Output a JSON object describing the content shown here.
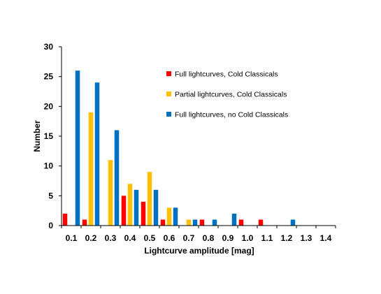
{
  "chart_data": {
    "type": "bar",
    "categories": [
      "0.1",
      "0.2",
      "0.3",
      "0.4",
      "0.5",
      "0.6",
      "0.7",
      "0.8",
      "0.9",
      "1.0",
      "1.1",
      "1.2",
      "1.3",
      "1.4"
    ],
    "series": [
      {
        "name": "Full lightcurves, Cold Classicals",
        "color": "#ff0000",
        "values": [
          2,
          1,
          0,
          5,
          4,
          1,
          0,
          1,
          0,
          1,
          1,
          0,
          0,
          0
        ]
      },
      {
        "name": "Partial lightcurves, Cold Classicals",
        "color": "#ffc000",
        "values": [
          0,
          19,
          11,
          7,
          9,
          3,
          1,
          0,
          0,
          0,
          0,
          0,
          0,
          0
        ]
      },
      {
        "name": "Full lightcurves, no Cold Classicals",
        "color": "#0070c0",
        "values": [
          26,
          24,
          16,
          6,
          6,
          3,
          1,
          1,
          2,
          0,
          0,
          1,
          0,
          0
        ]
      }
    ],
    "xlabel": "Lightcurve amplitude [mag]",
    "ylabel": "Number",
    "ylim": [
      0,
      30
    ],
    "yticks": [
      0,
      5,
      10,
      15,
      20,
      25,
      30
    ],
    "grid": false,
    "legend_position": "top-right"
  }
}
